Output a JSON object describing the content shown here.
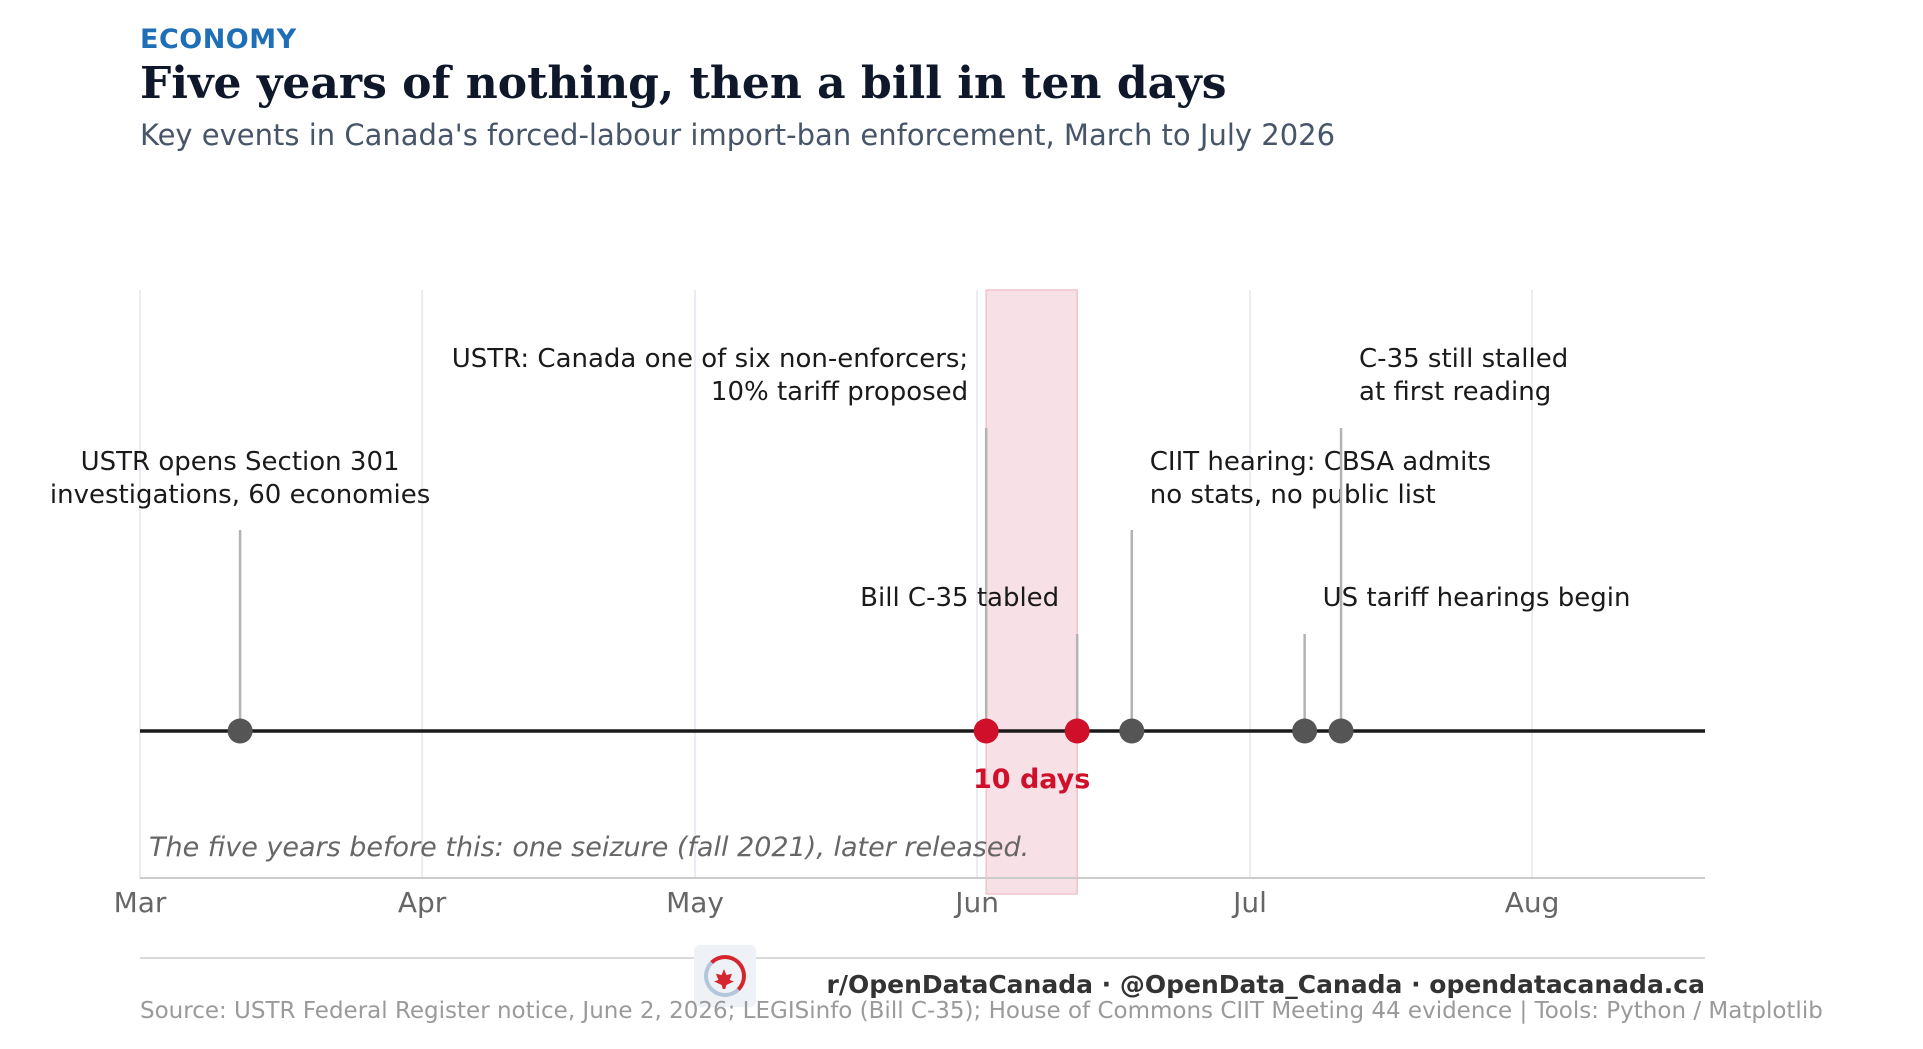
{
  "header": {
    "kicker": "ECONOMY",
    "title": "Five years of nothing, then a bill in ten days",
    "subtitle": "Key events in Canada's forced-labour import-ban enforcement, March to July 2026"
  },
  "chart_data": {
    "type": "timeline",
    "x_axis": {
      "range": [
        "2026-03-01",
        "2026-08-20"
      ],
      "ticks": [
        {
          "date": "2026-03-01",
          "label": "Mar"
        },
        {
          "date": "2026-04-01",
          "label": "Apr"
        },
        {
          "date": "2026-05-01",
          "label": "May"
        },
        {
          "date": "2026-06-01",
          "label": "Jun"
        },
        {
          "date": "2026-07-01",
          "label": "Jul"
        },
        {
          "date": "2026-08-01",
          "label": "Aug"
        }
      ]
    },
    "grid": "vertical",
    "events": [
      {
        "date": "2026-03-12",
        "label": [
          "USTR opens Section 301",
          "investigations, 60 economies"
        ],
        "highlight": false
      },
      {
        "date": "2026-06-02",
        "label": [
          "USTR: Canada one of six non-enforcers;",
          "10% tariff proposed"
        ],
        "highlight": true
      },
      {
        "date": "2026-06-12",
        "label": [
          "Bill C-35 tabled"
        ],
        "highlight": true
      },
      {
        "date": "2026-06-18",
        "label": [
          "CIIT hearing: CBSA admits",
          "no stats, no public list"
        ],
        "highlight": false
      },
      {
        "date": "2026-07-07",
        "label": [
          "US tariff hearings begin"
        ],
        "highlight": false
      },
      {
        "date": "2026-07-11",
        "label": [
          "C-35 still stalled",
          "at first reading"
        ],
        "highlight": false
      }
    ],
    "highlight_span": {
      "start": "2026-06-02",
      "end": "2026-06-12",
      "label": "10 days"
    },
    "note": "The five years before this: one seizure (fall 2021), later released.",
    "colors": {
      "highlight": "#d0102a",
      "event": "#555555",
      "span_fill": "#f8e1e6",
      "axis_line": "#1a1a1a"
    }
  },
  "footer": {
    "handles": "r/OpenDataCanada  ·  @OpenData_Canada  ·  opendatacanada.ca",
    "source": "Source: USTR Federal Register notice, June 2, 2026; LEGISinfo (Bill C-35); House of Commons CIIT Meeting 44 evidence  |  Tools: Python / Matplotlib"
  }
}
